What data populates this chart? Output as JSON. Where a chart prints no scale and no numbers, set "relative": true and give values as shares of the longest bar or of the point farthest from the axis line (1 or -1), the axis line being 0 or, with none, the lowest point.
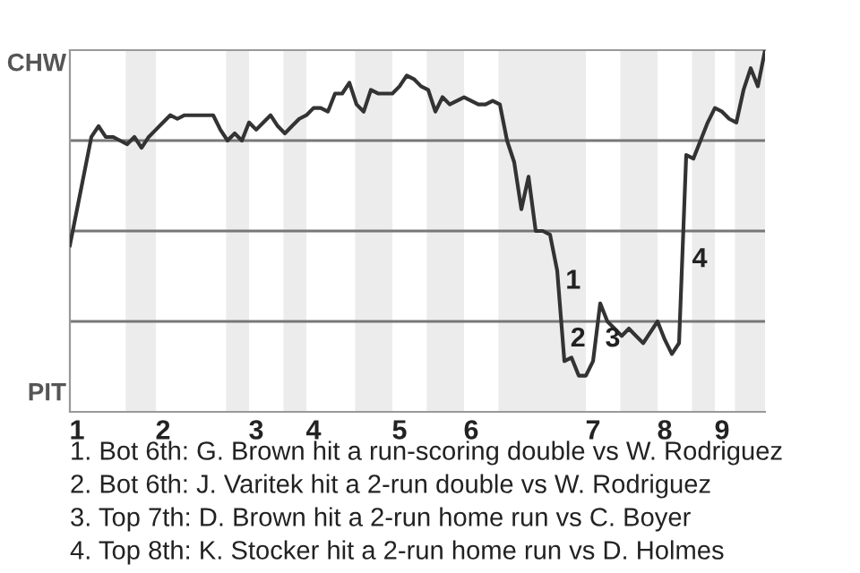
{
  "chart_data": {
    "type": "line",
    "relative": true,
    "categories": [
      null,
      "1",
      null,
      null,
      null,
      null,
      null,
      null,
      null,
      null,
      null,
      null,
      null,
      "2",
      null,
      null,
      null,
      null,
      null,
      null,
      null,
      null,
      null,
      null,
      null,
      null,
      "3",
      null,
      null,
      null,
      null,
      null,
      null,
      null,
      "4",
      null,
      null,
      null,
      null,
      null,
      null,
      null,
      null,
      null,
      null,
      null,
      "5",
      null,
      null,
      null,
      null,
      null,
      null,
      null,
      null,
      null,
      "6",
      null,
      null,
      null,
      null,
      null,
      null,
      null,
      null,
      null,
      null,
      null,
      null,
      null,
      null,
      null,
      null,
      "7",
      null,
      null,
      null,
      null,
      null,
      null,
      null,
      null,
      null,
      "8",
      null,
      null,
      null,
      null,
      null,
      null,
      null,
      "9",
      null,
      null,
      null,
      null,
      null,
      null
    ],
    "series": [
      {
        "color": "#333333",
        "values": [
          0.46,
          0.56,
          0.66,
          0.76,
          0.79,
          0.76,
          0.76,
          0.75,
          0.74,
          0.76,
          0.73,
          0.76,
          0.78,
          0.8,
          0.82,
          0.81,
          0.82,
          0.82,
          0.82,
          0.82,
          0.82,
          0.78,
          0.75,
          0.77,
          0.75,
          0.8,
          0.78,
          0.8,
          0.82,
          0.79,
          0.77,
          0.79,
          0.81,
          0.82,
          0.84,
          0.84,
          0.83,
          0.88,
          0.88,
          0.91,
          0.85,
          0.83,
          0.89,
          0.88,
          0.88,
          0.88,
          0.9,
          0.93,
          0.92,
          0.9,
          0.89,
          0.83,
          0.87,
          0.85,
          0.86,
          0.87,
          0.86,
          0.85,
          0.85,
          0.86,
          0.85,
          0.75,
          0.69,
          0.56,
          0.65,
          0.5,
          0.5,
          0.49,
          0.39,
          0.14,
          0.15,
          0.1,
          0.1,
          0.14,
          0.3,
          0.25,
          0.23,
          0.21,
          0.23,
          0.21,
          0.19,
          0.22,
          0.25,
          0.2,
          0.16,
          0.19,
          0.71,
          0.7,
          0.75,
          0.8,
          0.84,
          0.83,
          0.81,
          0.8,
          0.89,
          0.95,
          0.9,
          1
        ]
      }
    ],
    "ref_lines": [
      {
        "axis": "y",
        "value": 0.25,
        "color": "#777777"
      },
      {
        "axis": "y",
        "value": 0.5,
        "color": "#777777"
      },
      {
        "axis": "y",
        "value": 0.75,
        "color": "#777777"
      }
    ],
    "annotations": [
      "CHW",
      "PIT",
      "1",
      "2",
      "3",
      "4",
      "1. Bot 6th: G. Brown hit a run-scoring double vs W. Rodriguez",
      "2. Bot 6th: J. Varitek hit a 2-run double vs W. Rodriguez",
      "3. Top 7th: D. Brown hit a 2-run home run vs C. Boyer",
      "4. Top 8th: K. Stocker hit a 2-run home run vs D. Holmes"
    ]
  }
}
